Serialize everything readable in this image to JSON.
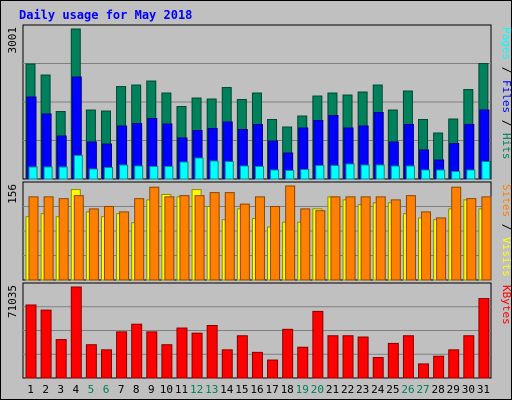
{
  "title": "Daily usage for May 2018",
  "colors": {
    "hits": "#00805b",
    "files": "#0000ff",
    "pages": "#00ffff",
    "visits": "#ffff00",
    "sites": "#ff8000",
    "kbytes": "#ff0000",
    "weekend_label": "#00805b",
    "weekday_label": "#000000"
  },
  "chart_data": [
    {
      "type": "bar",
      "panel": "hits-files-pages",
      "ymax_label": "3001",
      "side_labels": [
        "Pages",
        "/",
        "Files",
        "/",
        "Hits"
      ],
      "categories": [
        "1",
        "2",
        "3",
        "4",
        "5",
        "6",
        "7",
        "8",
        "9",
        "10",
        "11",
        "12",
        "13",
        "14",
        "15",
        "16",
        "17",
        "18",
        "19",
        "20",
        "21",
        "22",
        "23",
        "24",
        "25",
        "26",
        "27",
        "28",
        "29",
        "30",
        "31"
      ],
      "series": [
        {
          "name": "Hits",
          "values": [
            2300,
            2080,
            1350,
            3001,
            1380,
            1360,
            1850,
            1880,
            1960,
            1720,
            1450,
            1620,
            1600,
            1830,
            1590,
            1720,
            1190,
            1040,
            1260,
            1660,
            1720,
            1680,
            1740,
            1880,
            1380,
            1760,
            1190,
            920,
            1200,
            1790,
            2310
          ]
        },
        {
          "name": "Files",
          "values": [
            1640,
            1300,
            860,
            2040,
            740,
            700,
            1060,
            1110,
            1210,
            1100,
            820,
            970,
            1010,
            1140,
            990,
            1090,
            760,
            520,
            1020,
            1170,
            1270,
            1020,
            1060,
            1330,
            740,
            1090,
            580,
            380,
            710,
            1090,
            1380
          ]
        },
        {
          "name": "Pages",
          "values": [
            240,
            240,
            240,
            470,
            200,
            230,
            280,
            260,
            250,
            250,
            340,
            420,
            360,
            350,
            260,
            250,
            180,
            170,
            190,
            270,
            270,
            300,
            280,
            280,
            260,
            260,
            180,
            180,
            150,
            180,
            350
          ]
        }
      ],
      "ylim": [
        0,
        3001
      ]
    },
    {
      "type": "bar",
      "panel": "visits-sites",
      "ymax_label": "156",
      "side_labels": [
        "Sites",
        "/",
        "Visits"
      ],
      "categories": [
        "1",
        "2",
        "3",
        "4",
        "5",
        "6",
        "7",
        "8",
        "9",
        "10",
        "11",
        "12",
        "13",
        "14",
        "15",
        "16",
        "17",
        "18",
        "19",
        "20",
        "21",
        "22",
        "23",
        "24",
        "25",
        "26",
        "27",
        "28",
        "29",
        "30",
        "31"
      ],
      "series": [
        {
          "name": "Visits",
          "values": [
            105,
            110,
            105,
            150,
            113,
            105,
            110,
            95,
            133,
            142,
            138,
            150,
            122,
            100,
            118,
            102,
            88,
            96,
            96,
            118,
            138,
            133,
            125,
            128,
            128,
            110,
            103,
            100,
            118,
            133,
            118
          ]
        },
        {
          "name": "Sites",
          "values": [
            138,
            138,
            135,
            140,
            118,
            122,
            113,
            135,
            154,
            138,
            140,
            140,
            145,
            145,
            126,
            138,
            122,
            156,
            118,
            115,
            138,
            138,
            138,
            138,
            133,
            140,
            113,
            103,
            154,
            135,
            138
          ]
        }
      ],
      "ylim": [
        0,
        156
      ]
    },
    {
      "type": "bar",
      "panel": "kbytes",
      "ymax_label": "71035",
      "side_labels": [
        "KBytes"
      ],
      "categories": [
        "1",
        "2",
        "3",
        "4",
        "5",
        "6",
        "7",
        "8",
        "9",
        "10",
        "11",
        "12",
        "13",
        "14",
        "15",
        "16",
        "17",
        "18",
        "19",
        "20",
        "21",
        "22",
        "23",
        "24",
        "25",
        "26",
        "27",
        "28",
        "29",
        "30",
        "31"
      ],
      "series": [
        {
          "name": "KBytes",
          "values": [
            57000,
            53000,
            30000,
            71035,
            26000,
            22000,
            36000,
            42000,
            36000,
            26000,
            39000,
            35000,
            41000,
            22000,
            33000,
            20000,
            14000,
            38000,
            24000,
            52000,
            33000,
            33000,
            32000,
            16000,
            27000,
            33000,
            11000,
            17000,
            22000,
            33000,
            62000
          ]
        }
      ],
      "ylim": [
        0,
        71035
      ]
    }
  ],
  "weekend_days": [
    "5",
    "6",
    "12",
    "13",
    "19",
    "20",
    "26",
    "27"
  ]
}
